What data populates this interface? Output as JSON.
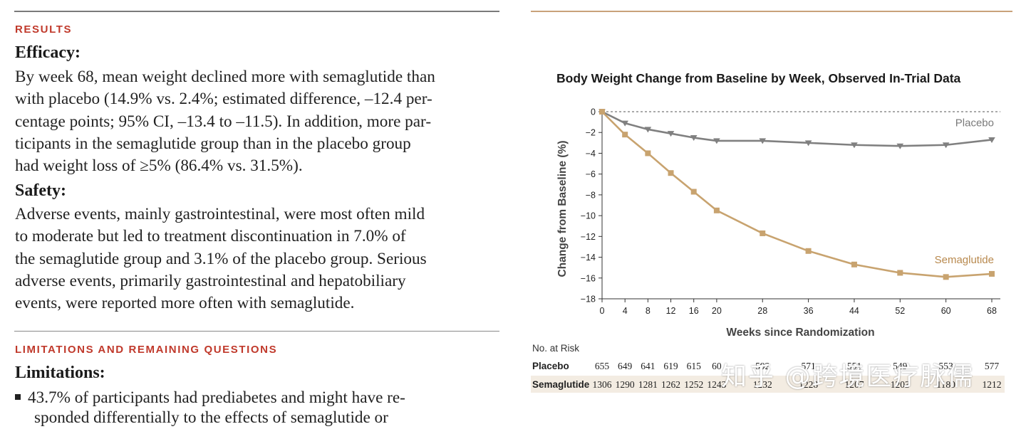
{
  "left": {
    "results_heading": "RESULTS",
    "efficacy_label": "Efficacy:",
    "efficacy_lines": [
      "By week 68, mean weight declined more with semaglutide than",
      "with placebo (14.9% vs. 2.4%; estimated difference, –12.4 per-",
      "centage points; 95% CI, –13.4 to –11.5). In addition, more par-",
      "ticipants in the semaglutide group than in the placebo group",
      "had weight loss of ≥5% (86.4% vs. 31.5%)."
    ],
    "safety_label": "Safety:",
    "safety_lines": [
      "Adverse events, mainly gastrointestinal, were most often mild",
      "to moderate but led to treatment discontinuation in 7.0% of",
      "the semaglutide group and 3.1% of the placebo group. Serious",
      "adverse events, primarily gastrointestinal and hepatobiliary",
      "events, were reported more often with semaglutide."
    ],
    "limitations_heading": "LIMITATIONS AND REMAINING QUESTIONS",
    "limitations_label": "Limitations:",
    "bullet_line1": "43.7% of participants had prediabetes and might have re-",
    "bullet_line2": "sponded differentially to the effects of semaglutide or"
  },
  "chart_data": {
    "type": "line",
    "title": "Body Weight Change from Baseline by Week, Observed In-Trial Data",
    "xlabel": "Weeks since Randomization",
    "ylabel": "Change from Baseline (%)",
    "x": [
      0,
      4,
      8,
      12,
      16,
      20,
      28,
      36,
      44,
      52,
      60,
      68
    ],
    "ylim": [
      -18,
      0
    ],
    "yticks": [
      0,
      -2,
      -4,
      -6,
      -8,
      -10,
      -12,
      -14,
      -16,
      -18
    ],
    "ytick_labels": [
      "0",
      "−2",
      "−4",
      "−6",
      "−8",
      "−10",
      "−12",
      "−14",
      "−16",
      "−18"
    ],
    "series": [
      {
        "name": "Placebo",
        "color": "#808080",
        "marker": "triangle-down",
        "values": [
          0,
          -1.1,
          -1.7,
          -2.1,
          -2.5,
          -2.8,
          -2.8,
          -3.0,
          -3.2,
          -3.3,
          -3.2,
          -2.7
        ]
      },
      {
        "name": "Semaglutide",
        "color": "#c8a36f",
        "marker": "square",
        "values": [
          0,
          -2.2,
          -4.0,
          -5.9,
          -7.7,
          -9.5,
          -11.7,
          -13.4,
          -14.7,
          -15.5,
          -15.9,
          -15.6
        ]
      }
    ],
    "reference_line": {
      "y": 0,
      "style": "dashed"
    },
    "legend": "inline labels at line ends"
  },
  "risk_table": {
    "title": "No. at Risk",
    "rows": [
      {
        "label": "Placebo",
        "values": [
          "655",
          "649",
          "641",
          "619",
          "615",
          "60",
          "592",
          "571",
          "551",
          "549",
          "553",
          "577"
        ]
      },
      {
        "label": "Semaglutide",
        "values": [
          "1306",
          "1290",
          "1281",
          "1262",
          "1252",
          "1243",
          "1232",
          "1228",
          "1207",
          "1203",
          "1180",
          "1212"
        ]
      }
    ]
  },
  "watermark": "知乎 @跨境医疗脉儒"
}
